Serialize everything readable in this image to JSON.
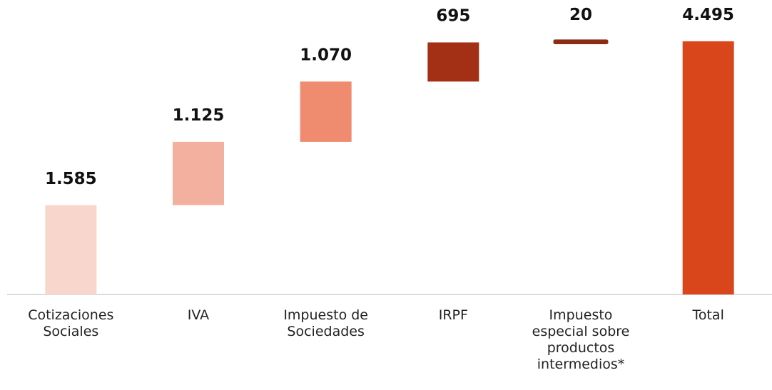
{
  "chart_data": {
    "type": "waterfall",
    "categories": [
      "Cotizaciones Sociales",
      "IVA",
      "Impuesto de Sociedades",
      "IRPF",
      "Impuesto especial sobre productos intermedios*",
      "Total"
    ],
    "values": [
      1585,
      1125,
      1070,
      695,
      20,
      4495
    ],
    "value_labels": [
      "1.585",
      "1.125",
      "1.070",
      "695",
      "20",
      "4.495"
    ],
    "colors": [
      "#f8d6cc",
      "#f4b09f",
      "#ef8c6f",
      "#a33014",
      "#8b2c14",
      "#d9461b"
    ],
    "total_index": 5,
    "ylim": [
      0,
      5000
    ]
  }
}
